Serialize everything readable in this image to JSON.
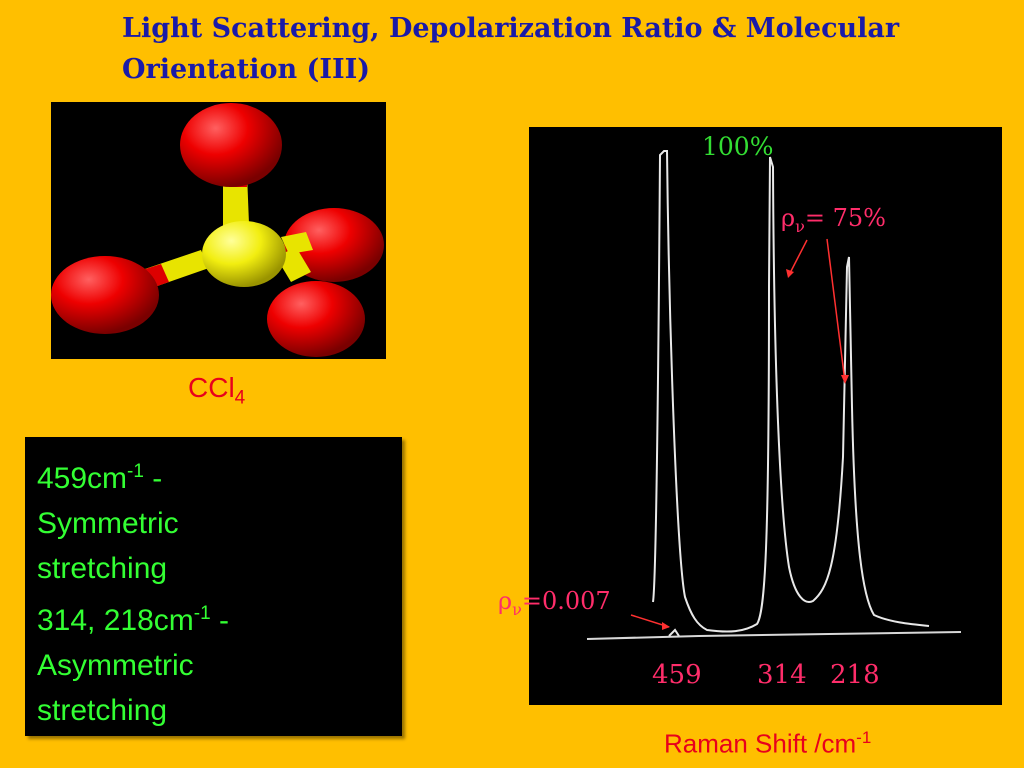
{
  "title": {
    "line1": "Light Scattering, Depolarization Ratio & Molecular",
    "line2": "Orientation (III)"
  },
  "molecule": {
    "formula_main": "CCl",
    "formula_sub": "4",
    "colors": {
      "carbon": "#f2ee10",
      "chlorine": "#ee0000",
      "background": "#000000"
    }
  },
  "description": {
    "line1_value": "459cm",
    "line1_sup": "-1",
    "line1_suffix": " -",
    "line2": "Symmetric",
    "line3": "stretching",
    "line4_value": "314, 218cm",
    "line4_sup": "-1",
    "line4_suffix": " -",
    "line5": "Asymmetric",
    "line6": "stretching",
    "text_color": "#33ff33"
  },
  "spectrum": {
    "label_100": "100%",
    "rho_symbol": "ρ",
    "rho_sub": "ν",
    "rho_75_text": "= 75%",
    "rho_low_text": "=0.007",
    "peak_labels": [
      "459",
      "314",
      "218"
    ],
    "x_label": "Raman Shift /cm",
    "x_label_sup": "-1"
  }
}
